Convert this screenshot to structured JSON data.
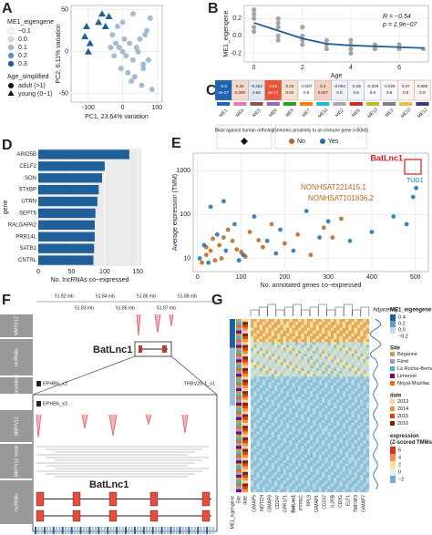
{
  "A": {
    "label": "A",
    "type": "scatter",
    "color_title": "ME1_eigengene",
    "color_labels": [
      "−0.1",
      "0.0",
      "0.1",
      "0.2",
      "0.3"
    ],
    "shape_title": "Age_simplified",
    "shape_labels": [
      "adult (>1)",
      "young (0−1)"
    ],
    "xlabel": "PC1, 23.64% variation",
    "ylabel": "PC2, 6.11% variation",
    "xlim": [
      -150,
      115
    ],
    "ylim": [
      -60,
      55
    ],
    "xticks": [
      -100,
      0,
      100
    ],
    "yticks": [
      -50,
      0,
      50
    ],
    "series": [
      {
        "name": "young",
        "x": [
          -105,
          -110,
          -60,
          -40,
          -95,
          -100,
          -70,
          -50
        ],
        "y": [
          30,
          18,
          45,
          42,
          10,
          0,
          35,
          30
        ],
        "color": "#1f5f9a"
      },
      {
        "name": "adult",
        "x": [
          -30,
          -20,
          -10,
          0,
          10,
          20,
          30,
          40,
          50,
          60,
          70,
          80,
          -25,
          -5,
          15,
          35,
          55,
          75,
          5,
          25,
          45,
          -15,
          65,
          85,
          -35,
          0,
          30,
          60
        ],
        "y": [
          20,
          10,
          5,
          0,
          -5,
          10,
          -10,
          5,
          15,
          -15,
          25,
          40,
          -5,
          -20,
          -25,
          -30,
          -40,
          -10,
          15,
          -35,
          0,
          30,
          20,
          -45,
          5,
          35,
          45,
          -20
        ],
        "color": "#7f9fc0"
      }
    ]
  },
  "B": {
    "label": "B",
    "type": "line",
    "ylabel": "ME1_eigengene",
    "xlabel": "Age",
    "annotations": [
      "R = −0.54",
      "p = 1.9e−07"
    ],
    "xlim": [
      -0.4,
      7.2
    ],
    "ylim": [
      -0.3,
      0.35
    ],
    "xticks": [
      0,
      2,
      4,
      6
    ],
    "yticks": [
      {
        "value": -0.2,
        "label": "-0.2"
      },
      {
        "value": 0,
        "label": "0.0"
      },
      {
        "value": 0.2,
        "label": "0.2"
      }
    ],
    "fit": {
      "x": [
        0,
        1,
        2,
        3,
        4,
        5,
        6,
        7
      ],
      "y": [
        0.15,
        0.06,
        -0.03,
        -0.09,
        -0.11,
        -0.12,
        -0.13,
        -0.14
      ],
      "color": "#1f5f9a"
    },
    "points": {
      "x": [
        0,
        0,
        0,
        0,
        0,
        1,
        1,
        1,
        1,
        1,
        2,
        2,
        2,
        2,
        3,
        3,
        3,
        4,
        4,
        4,
        4,
        5,
        5,
        6,
        6,
        7
      ],
      "y": [
        0.3,
        0.2,
        0.1,
        0.05,
        0.25,
        0.2,
        0.1,
        0,
        0.15,
        -0.05,
        0.1,
        0,
        -0.1,
        -0.05,
        -0.05,
        -0.1,
        -0.15,
        -0.1,
        -0.15,
        -0.05,
        -0.2,
        -0.1,
        -0.15,
        -0.1,
        -0.15,
        -0.15
      ]
    }
  },
  "C": {
    "label": "C",
    "modules": [
      "ME1",
      "ME6",
      "ME5",
      "ME8",
      "ME4",
      "ME7",
      "ME11",
      "ME2",
      "ME9",
      "ME13",
      "ME3",
      "ME10",
      "ME12"
    ],
    "r": [
      "-0.6",
      "0.29",
      "-0.253",
      "0.62",
      "0.23",
      "-0.007",
      "0.3",
      "-0.063",
      "-0.05",
      "-0.029",
      "-0.029",
      "0.07",
      "0.069"
    ],
    "p": [
      "4e-27",
      "0.009",
      "0.66",
      "3e-17",
      "0.04",
      "0.5",
      "0.007",
      "0.6",
      "0.6",
      "0.8",
      "0.8",
      "0.5",
      "0.5"
    ],
    "colors": [
      "#1e64b0",
      "#f8d8c8",
      "#dde8f4",
      "#e8543c",
      "#fbe0d0",
      "#ffffff",
      "#f8d0c0",
      "#eef3fa",
      "#f0f5fa",
      "#f7f9fc",
      "#f7f9fc",
      "#fcf2ee",
      "#fcf2ee"
    ],
    "swatches": [
      "#1e64b0",
      "#e377c2",
      "#8c564b",
      "#9467bd",
      "#2ca02c",
      "#ff7f0e",
      "#17becf",
      "#aaaaaa",
      "#d62728",
      "#bcbd22",
      "#7f7f7f",
      "#e7ba52",
      "#393b79"
    ]
  },
  "D": {
    "label": "D",
    "type": "bar",
    "ylabel": "gene",
    "xlabel": "No. lncRNAs co−expressed",
    "color": "#1f5f9a",
    "categories": [
      "ARID5B",
      "CELF2",
      "SON",
      "STXBP",
      "UTRN",
      "SEPT6",
      "RALGAPA2",
      "PRR14L",
      "SATB1",
      "CNTRL"
    ],
    "values": [
      137,
      100,
      96,
      91,
      89,
      86,
      85,
      85,
      84,
      83
    ],
    "xlim": [
      0,
      155
    ],
    "xticks": [
      0,
      50,
      100,
      150
    ]
  },
  "E": {
    "label": "E",
    "type": "scatter",
    "xlabel": "No. annotated genes co−expressed",
    "ylabel": "Average expression (TMM)",
    "legend1": "Blast against human ortholog",
    "legend2": "Genomic proximity to an immune gene (<50kb)",
    "xlim": [
      -10,
      530
    ],
    "ylim": [
      5,
      2500
    ],
    "log_y": true,
    "xticks": [
      0,
      100,
      200,
      300,
      400,
      500
    ],
    "yticks": [
      10,
      100,
      1000
    ],
    "highlight": [
      "BatLnc1",
      "TUG1",
      "NONHSAT221415.1",
      "NONHSAT101836.2"
    ],
    "series": [
      {
        "name": "No",
        "color": "#b8651b",
        "x": [
          10,
          20,
          30,
          40,
          50,
          60,
          80,
          100,
          120,
          150,
          170,
          200,
          230,
          260,
          290,
          310,
          330,
          20,
          35,
          55,
          70,
          90,
          110,
          140
        ],
        "y": [
          8,
          12,
          15,
          9,
          20,
          30,
          25,
          14,
          40,
          18,
          60,
          22,
          35,
          12,
          50,
          30,
          80,
          18,
          28,
          10,
          45,
          16,
          11,
          26
        ]
      },
      {
        "name": "Yes",
        "color": "#1f6fa8",
        "x": [
          5,
          15,
          25,
          45,
          65,
          85,
          105,
          130,
          160,
          190,
          220,
          250,
          280,
          300,
          350,
          400,
          450,
          480,
          495,
          502,
          30,
          60,
          95,
          180
        ],
        "y": [
          10,
          20,
          8,
          35,
          15,
          60,
          12,
          90,
          25,
          45,
          15,
          120,
          30,
          70,
          25,
          40,
          90,
          60,
          250,
          400,
          150,
          200,
          9,
          13
        ]
      }
    ]
  },
  "F": {
    "label": "F",
    "coords": [
      "51.82 mb",
      "51.84 mb",
      "51.86 mb",
      "51.88 mb"
    ],
    "coords2": [
      "51.83 mb",
      "51.85 mb",
      "51.87 mb"
    ],
    "tracks": [
      "MMYV12",
      "lncRNAs",
      "Annotation"
    ],
    "genes": [
      "EPHB6_x2",
      "TRBV29-1_x1",
      "EPHB6_x3"
    ],
    "name": "BatLnc1",
    "tracks2": [
      "MMYV12",
      "MMYV12 reads",
      "lncRNAs"
    ],
    "name2": "BatLnc1"
  },
  "G": {
    "label": "G",
    "adjacency": "Adjacency",
    "color_title": "ME1_eigengene",
    "color_labels": [
      "0.4",
      "0.2",
      "0.0",
      "−0.2"
    ],
    "site_title": "Site",
    "sites": [
      "Béganne",
      "Férel",
      "La Roche-Bernard",
      "Limerzel",
      "Noyal-Muzillac"
    ],
    "site_colors": [
      "#c8a24a",
      "#9e9ac8",
      "#41b6c4",
      "#7a0177",
      "#f16913"
    ],
    "date_title": "date",
    "dates": [
      "2013",
      "2014",
      "2015",
      "2016"
    ],
    "date_colors": [
      "#fdd0a2",
      "#fd8d3c",
      "#d94801",
      "#7f2704"
    ],
    "expr_title": "expression\n(Z-scored TMMs)",
    "expr_labels": [
      "6",
      "4",
      "2",
      "0",
      "−2"
    ],
    "side_labels": [
      "ME1_eigengene",
      "Site",
      "date"
    ],
    "genes": [
      "GIMAP5",
      "NOTCH",
      "GIMAP8",
      "CD247",
      "GPR171",
      "BatLnc1",
      "PTPRC",
      "RPL9",
      "GIMAP1",
      "CD247",
      "IL2RB",
      "CD3G",
      "ELF1",
      "TMF3P3",
      "GIMAP7"
    ]
  }
}
